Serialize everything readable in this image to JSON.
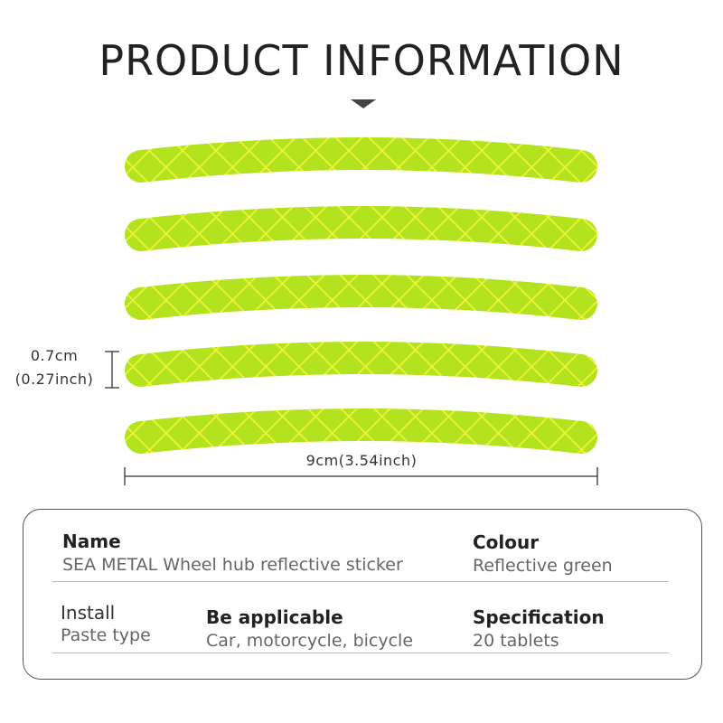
{
  "title": "PRODUCT INFORMATION",
  "dimensions": {
    "height_cm": "0.7cm",
    "height_inch": "(0.27inch)",
    "width": "9cm(3.54inch)"
  },
  "colors": {
    "strip": "#b3e21e",
    "grid": "#eef43a"
  },
  "strip_count": 5,
  "info": {
    "name": {
      "label": "Name",
      "value": "SEA METAL Wheel hub reflective sticker"
    },
    "colour": {
      "label": "Colour",
      "value": "Reflective green"
    },
    "install": {
      "label": "Install",
      "value": "Paste type"
    },
    "applicable": {
      "label": "Be applicable",
      "value": "Car, motorcycle, bicycle"
    },
    "specification": {
      "label": "Specification",
      "value": "20 tablets"
    }
  }
}
